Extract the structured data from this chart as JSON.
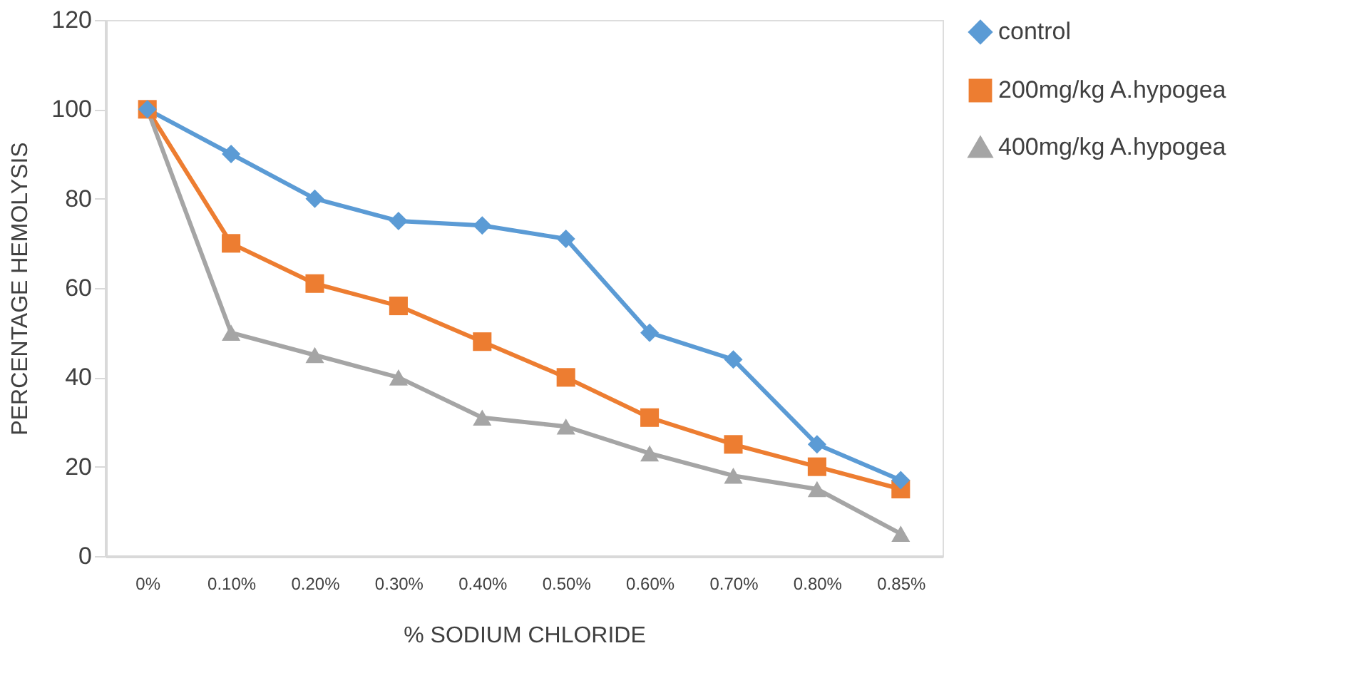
{
  "chart_data": {
    "type": "line",
    "categories": [
      "0%",
      "0.10%",
      "0.20%",
      "0.30%",
      "0.40%",
      "0.50%",
      "0.60%",
      "0.70%",
      "0.80%",
      "0.85%"
    ],
    "series": [
      {
        "name": "control",
        "color": "#5b9bd5",
        "marker": "diamond",
        "values": [
          100,
          90,
          80,
          75,
          74,
          71,
          50,
          44,
          25,
          17
        ]
      },
      {
        "name": "200mg/kg A.hypogea",
        "color": "#ed7d31",
        "marker": "square",
        "values": [
          100,
          70,
          61,
          56,
          48,
          40,
          31,
          25,
          20,
          15
        ]
      },
      {
        "name": "400mg/kg A.hypogea",
        "color": "#a5a5a5",
        "marker": "triangle",
        "values": [
          100,
          50,
          45,
          40,
          31,
          29,
          23,
          18,
          15,
          5
        ]
      }
    ],
    "xlabel": "% SODIUM CHLORIDE",
    "ylabel": "PERCENTAGE HEMOLYSIS",
    "ylim": [
      0,
      120
    ],
    "yticks": [
      0,
      20,
      40,
      60,
      80,
      100,
      120
    ],
    "grid": false,
    "legend": "right",
    "line_style": "solid"
  }
}
